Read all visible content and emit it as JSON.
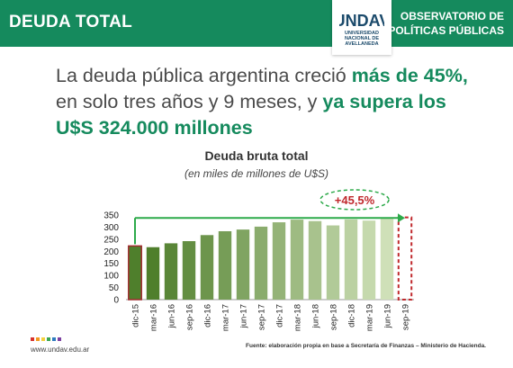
{
  "header": {
    "title": "DEUDA TOTAL",
    "org_line1": "OBSERVATORIO DE",
    "org_line2": "POLÍTICAS PÚBLICAS",
    "logo_word": "UNDAV",
    "logo_line1": "UNIVERSIDAD",
    "logo_line2": "NACIONAL DE",
    "logo_line3": "AVELLANEDA",
    "color": "#158a5d"
  },
  "headline": {
    "part1": "La deuda pública argentina creció ",
    "bold1": "más de 45%,",
    "part2": " en solo tres años y 9 meses, y ",
    "bold2": "ya supera los U$S 324.000 millones"
  },
  "chart_data": {
    "type": "bar",
    "title": "Deuda bruta total",
    "subtitle": "(en miles de millones de U$S)",
    "categories": [
      "dic-15",
      "mar-16",
      "jun-16",
      "sep-16",
      "dic-16",
      "mar-17",
      "jun-17",
      "sep-17",
      "dic-17",
      "mar-18",
      "jun-18",
      "sep-18",
      "dic-18",
      "mar-19",
      "jun-19",
      "sep-19"
    ],
    "values": [
      222,
      217,
      233,
      242,
      267,
      283,
      290,
      302,
      320,
      331,
      325,
      307,
      332,
      327,
      337,
      null
    ],
    "ylim": [
      0,
      350
    ],
    "yticks": [
      0,
      50,
      100,
      150,
      200,
      250,
      300,
      350
    ],
    "annotation": "+45,5%",
    "colors": {
      "first_bar_border": "#a0282c",
      "bar_dark": "#4f7f2c",
      "bar_light": "#cfe0b8",
      "arrow": "#2daa4a",
      "highlight": "#c0282c"
    },
    "grid": false
  },
  "footer": {
    "url": "www.undav.edu.ar",
    "source": "Fuente: elaboración propia en base a Secretaría de Finanzas – Ministerio de Hacienda."
  }
}
